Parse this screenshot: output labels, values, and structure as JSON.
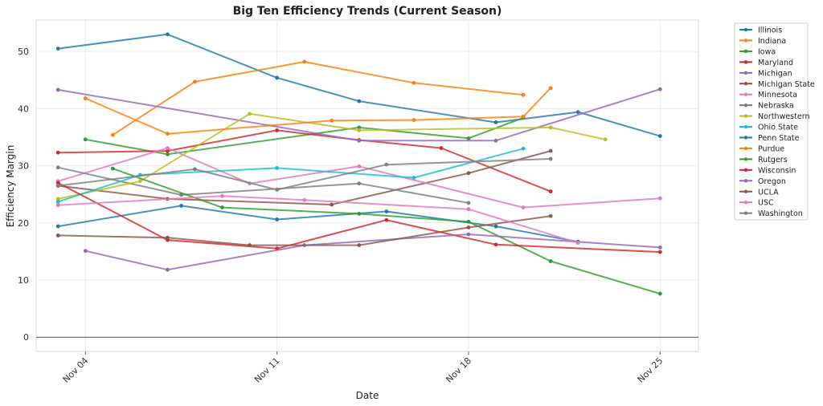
{
  "chart_data": {
    "type": "line",
    "title": "Big Ten Efficiency Trends (Current Season)",
    "xlabel": "Date",
    "ylabel": "Efficiency Margin",
    "x_ticks": [
      {
        "label": "Nov 04",
        "day": 4
      },
      {
        "label": "Nov 11",
        "day": 11
      },
      {
        "label": "Nov 18",
        "day": 18
      },
      {
        "label": "Nov 25",
        "day": 25
      }
    ],
    "xlim": [
      2.2,
      26.4
    ],
    "yticks": [
      0,
      10,
      20,
      30,
      40,
      50
    ],
    "ylim": [
      -2.5,
      55.5
    ],
    "grid": true,
    "zero_line": true,
    "legend_position": "outside-right",
    "series": [
      {
        "name": "Illinois",
        "color": "#1f77b4",
        "points": [
          [
            3,
            50.5
          ],
          [
            7,
            53
          ],
          [
            11,
            45.4
          ],
          [
            14,
            41.3
          ],
          [
            19,
            37.6
          ],
          [
            22,
            39.4
          ],
          [
            25,
            35.2
          ]
        ]
      },
      {
        "name": "Indiana",
        "color": "#ff7f0e",
        "points": [
          [
            5,
            35.4
          ],
          [
            8,
            44.7
          ],
          [
            12,
            48.2
          ],
          [
            16,
            44.5
          ],
          [
            20,
            42.4
          ]
        ]
      },
      {
        "name": "Iowa",
        "color": "#2ca02c",
        "points": [
          [
            4,
            34.6
          ],
          [
            7,
            32
          ],
          [
            14,
            36.7
          ],
          [
            18,
            34.8
          ],
          [
            20,
            38.4
          ]
        ]
      },
      {
        "name": "Maryland",
        "color": "#d62728",
        "points": [
          [
            3,
            32.3
          ],
          [
            7,
            32.6
          ],
          [
            11,
            36.2
          ],
          [
            14,
            34.5
          ],
          [
            17,
            33.1
          ],
          [
            21,
            25.5
          ]
        ]
      },
      {
        "name": "Michigan",
        "color": "#9467bd",
        "points": [
          [
            3,
            43.3
          ],
          [
            14,
            34.4
          ],
          [
            19,
            34.4
          ],
          [
            25,
            43.4
          ]
        ]
      },
      {
        "name": "Michigan State",
        "color": "#8c564b",
        "points": [
          [
            3,
            26.5
          ],
          [
            7,
            24.2
          ],
          [
            13,
            23.2
          ],
          [
            18,
            28.7
          ],
          [
            21,
            32.6
          ]
        ]
      },
      {
        "name": "Minnesota",
        "color": "#e377c2",
        "points": [
          [
            3,
            27.3
          ],
          [
            7,
            33.1
          ],
          [
            10,
            26.9
          ],
          [
            14,
            29.9
          ],
          [
            20,
            22.7
          ],
          [
            25,
            24.3
          ]
        ]
      },
      {
        "name": "Nebraska",
        "color": "#7f7f7f",
        "points": [
          [
            3,
            29.7
          ],
          [
            7.5,
            24.9
          ],
          [
            14,
            26.9
          ],
          [
            18,
            23.5
          ]
        ]
      },
      {
        "name": "Northwestern",
        "color": "#bcbd22",
        "points": [
          [
            3,
            24.2
          ],
          [
            6,
            27.3
          ],
          [
            10,
            39.1
          ],
          [
            14,
            36.2
          ],
          [
            21,
            36.7
          ],
          [
            23,
            34.6
          ]
        ]
      },
      {
        "name": "Ohio State",
        "color": "#17becf",
        "points": [
          [
            3,
            23.7
          ],
          [
            6,
            28.4
          ],
          [
            11,
            29.6
          ],
          [
            16,
            27.9
          ],
          [
            20,
            33
          ]
        ]
      },
      {
        "name": "Penn State",
        "color": "#1f77b4",
        "points": [
          [
            3,
            19.4
          ],
          [
            7.5,
            23
          ],
          [
            11,
            20.6
          ],
          [
            15,
            22
          ],
          [
            19,
            19.4
          ],
          [
            22,
            16.7
          ]
        ]
      },
      {
        "name": "Purdue",
        "color": "#ff7f0e",
        "points": [
          [
            4,
            41.8
          ],
          [
            7,
            35.6
          ],
          [
            13,
            37.9
          ],
          [
            16,
            38
          ],
          [
            20,
            38.6
          ],
          [
            21,
            43.6
          ]
        ]
      },
      {
        "name": "Rutgers",
        "color": "#2ca02c",
        "points": [
          [
            5,
            29.5
          ],
          [
            9,
            22.7
          ],
          [
            14,
            21.6
          ],
          [
            18,
            20.2
          ],
          [
            21,
            13.3
          ],
          [
            25,
            7.6
          ]
        ]
      },
      {
        "name": "Wisconsin",
        "color": "#d62728",
        "points": [
          [
            3,
            27
          ],
          [
            7,
            17
          ],
          [
            11,
            15.5
          ],
          [
            15,
            20.5
          ],
          [
            19,
            16.2
          ],
          [
            25,
            14.9
          ]
        ]
      },
      {
        "name": "Oregon",
        "color": "#9467bd",
        "points": [
          [
            4,
            15.1
          ],
          [
            7,
            11.8
          ],
          [
            12,
            16.1
          ],
          [
            18,
            18
          ],
          [
            25,
            15.7
          ]
        ]
      },
      {
        "name": "UCLA",
        "color": "#8c564b",
        "points": [
          [
            3,
            17.8
          ],
          [
            7,
            17.4
          ],
          [
            10,
            16.1
          ],
          [
            14,
            16.1
          ],
          [
            18,
            19.2
          ],
          [
            21,
            21.2
          ]
        ]
      },
      {
        "name": "USC",
        "color": "#e377c2",
        "points": [
          [
            3,
            23.1
          ],
          [
            9,
            24.7
          ],
          [
            12,
            24
          ],
          [
            18,
            22.4
          ],
          [
            22,
            16.5
          ]
        ]
      },
      {
        "name": "Washington",
        "color": "#7f7f7f",
        "points": [
          [
            3,
            26.5
          ],
          [
            8,
            29.4
          ],
          [
            11,
            25.8
          ],
          [
            15,
            30.2
          ],
          [
            21,
            31.2
          ]
        ]
      }
    ]
  }
}
